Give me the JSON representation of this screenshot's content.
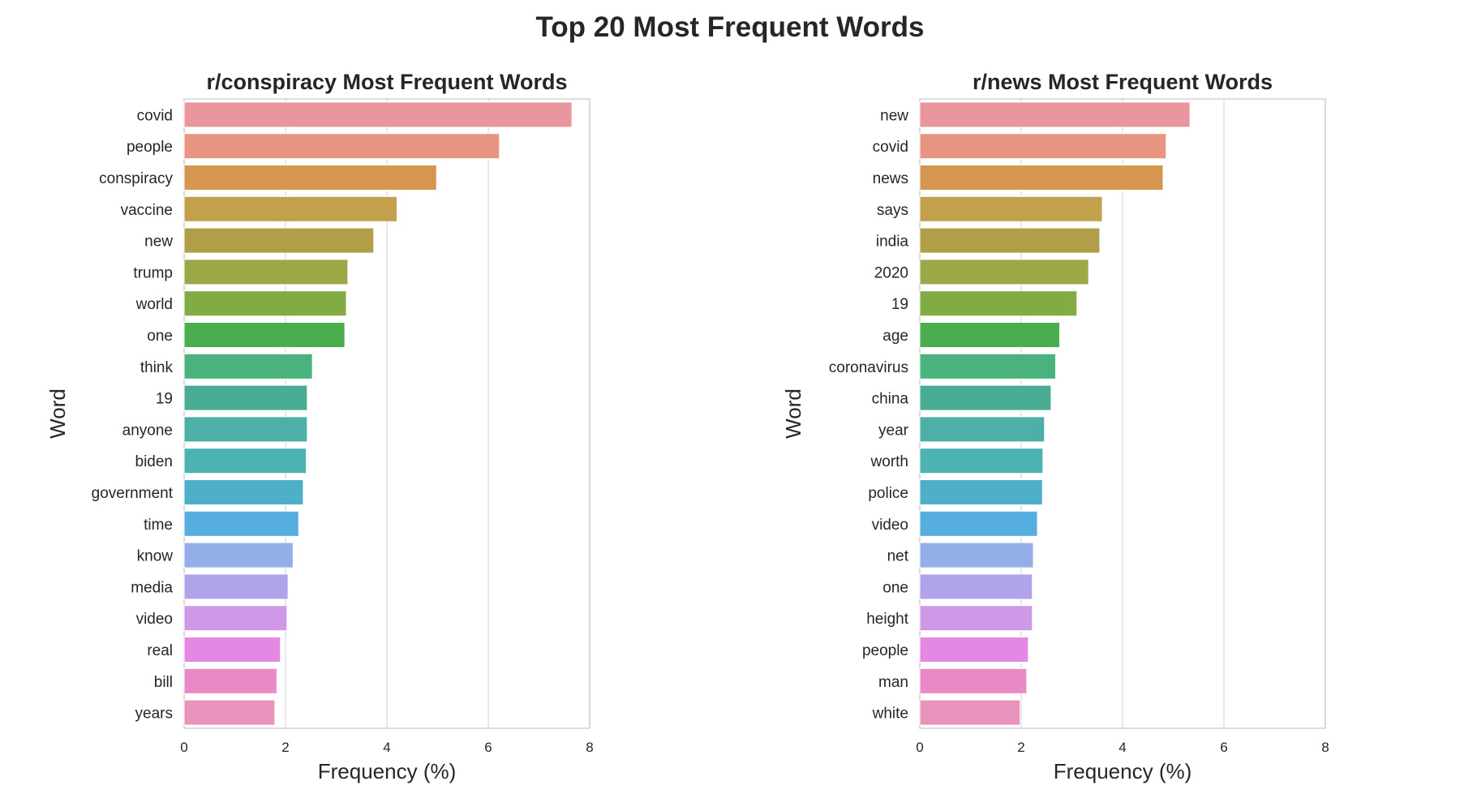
{
  "suptitle": "Top 20 Most Frequent Words",
  "chart_data": [
    {
      "type": "bar",
      "orientation": "horizontal",
      "title": "r/conspiracy Most Frequent Words",
      "xlabel": "Frequency (%)",
      "ylabel": "Word",
      "xlim": [
        0,
        8
      ],
      "xticks": [
        0,
        2,
        4,
        6,
        8
      ],
      "grid": true,
      "categories": [
        "covid",
        "people",
        "conspiracy",
        "vaccine",
        "new",
        "trump",
        "world",
        "one",
        "think",
        "19",
        "anyone",
        "biden",
        "government",
        "time",
        "know",
        "media",
        "video",
        "real",
        "bill",
        "years"
      ],
      "values": [
        7.65,
        6.22,
        4.98,
        4.2,
        3.74,
        3.23,
        3.2,
        3.17,
        2.53,
        2.43,
        2.43,
        2.41,
        2.35,
        2.26,
        2.15,
        2.05,
        2.03,
        1.9,
        1.83,
        1.79
      ]
    },
    {
      "type": "bar",
      "orientation": "horizontal",
      "title": "r/news Most Frequent Words",
      "xlabel": "Frequency (%)",
      "ylabel": "Word",
      "xlim": [
        0,
        8
      ],
      "xticks": [
        0,
        2,
        4,
        6,
        8
      ],
      "grid": true,
      "categories": [
        "new",
        "covid",
        "news",
        "says",
        "india",
        "2020",
        "19",
        "age",
        "coronavirus",
        "china",
        "year",
        "worth",
        "police",
        "video",
        "net",
        "one",
        "height",
        "people",
        "man",
        "white"
      ],
      "values": [
        5.33,
        4.86,
        4.8,
        3.6,
        3.55,
        3.33,
        3.1,
        2.76,
        2.68,
        2.59,
        2.46,
        2.43,
        2.42,
        2.32,
        2.24,
        2.22,
        2.22,
        2.14,
        2.11,
        1.98
      ]
    }
  ],
  "bar_colors": [
    "#e9969f",
    "#e79481",
    "#d59650",
    "#c3a04b",
    "#b09f48",
    "#9ea745",
    "#82ab45",
    "#4aae4f",
    "#4ab37d",
    "#4aad93",
    "#4cb0a8",
    "#4cb3b3",
    "#4eafc8",
    "#55ade0",
    "#94aee8",
    "#b0a3ea",
    "#cf99e8",
    "#e488e4",
    "#e98ac6",
    "#e992bb"
  ]
}
